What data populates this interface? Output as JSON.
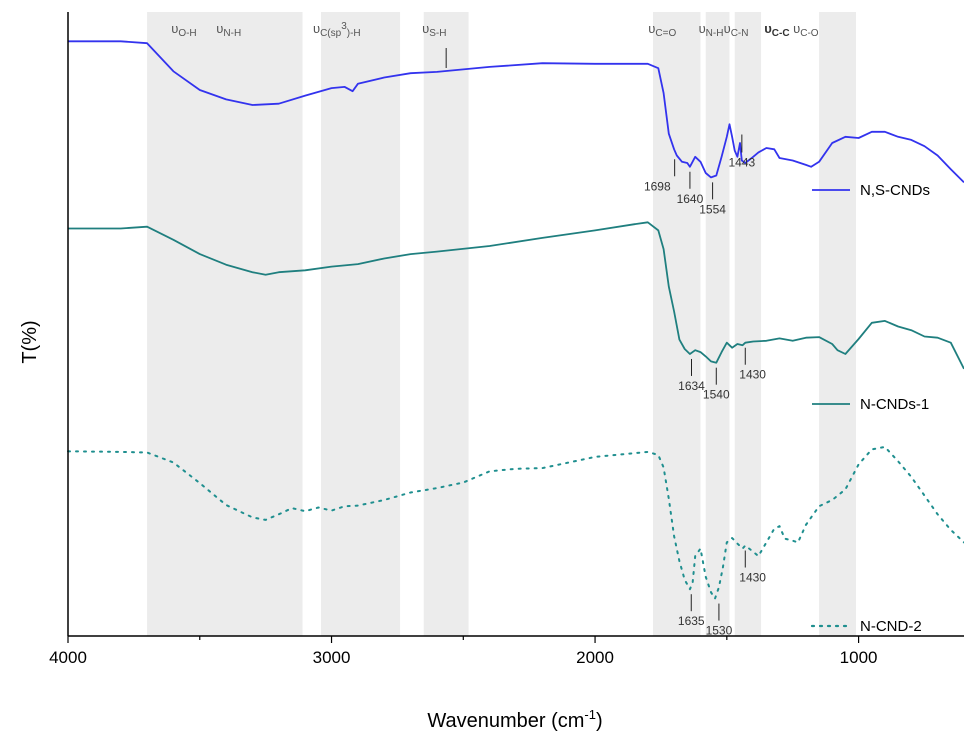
{
  "chart_data": {
    "type": "line",
    "title": "",
    "xlabel": "Wavenumber (cm",
    "xlabel_sup": "-1",
    "xlabel_close": ")",
    "ylabel": "T(%)",
    "xlim": [
      4000,
      600
    ],
    "x_reversed": true,
    "x_ticks": [
      4000,
      3000,
      2000,
      1000
    ],
    "x_tick_labels": [
      "4000",
      "3000",
      "2000",
      "1000"
    ],
    "y_ticks_shown": false,
    "ylim": [
      0,
      1
    ],
    "grid": false,
    "legend_position": "right",
    "bands": [
      {
        "label": "O-H",
        "from": 3700,
        "to": 3110
      },
      {
        "label": "C(sp3)-H",
        "from": 3040,
        "to": 2740
      },
      {
        "label": "S-H",
        "from": 2650,
        "to": 2480
      },
      {
        "label": "C=O",
        "from": 1780,
        "to": 1600
      },
      {
        "label": "N-H",
        "from": 1580,
        "to": 1490
      },
      {
        "label": "C-N",
        "from": 1470,
        "to": 1370
      },
      {
        "label": "C-C C-O",
        "from": 1150,
        "to": 1010
      }
    ],
    "band_labels": [
      {
        "sym": "υ",
        "sub": "O-H",
        "x": 3560
      },
      {
        "sym": "υ",
        "sub": "N-H",
        "x": 3390
      },
      {
        "sym": "υ",
        "sub": "C(sp",
        "sup": "3",
        "sub_tail": ")-H",
        "x": 2980
      },
      {
        "sym": "υ",
        "sub": "S-H",
        "x": 2610
      },
      {
        "sym": "υ",
        "sub": "C=O",
        "x": 1745
      },
      {
        "sym": "υ",
        "sub": "N-H",
        "x": 1560
      },
      {
        "sym": "υ",
        "sub": "C-N",
        "x": 1465
      },
      {
        "sym": "υ",
        "sub": "C-C",
        "x": 1310,
        "bold": true
      },
      {
        "sym": "υ",
        "sub": "C-O",
        "x": 1200
      }
    ],
    "series": [
      {
        "name": "N,S-CNDs",
        "color": "#3333ee",
        "style": "solid",
        "points": [
          [
            4000,
            0.953
          ],
          [
            3800,
            0.953
          ],
          [
            3700,
            0.95
          ],
          [
            3600,
            0.905
          ],
          [
            3500,
            0.875
          ],
          [
            3400,
            0.86
          ],
          [
            3300,
            0.851
          ],
          [
            3200,
            0.853
          ],
          [
            3100,
            0.866
          ],
          [
            3000,
            0.878
          ],
          [
            2950,
            0.88
          ],
          [
            2920,
            0.873
          ],
          [
            2900,
            0.885
          ],
          [
            2800,
            0.895
          ],
          [
            2700,
            0.902
          ],
          [
            2600,
            0.904
          ],
          [
            2400,
            0.912
          ],
          [
            2200,
            0.918
          ],
          [
            2000,
            0.917
          ],
          [
            1800,
            0.917
          ],
          [
            1760,
            0.91
          ],
          [
            1740,
            0.87
          ],
          [
            1720,
            0.805
          ],
          [
            1700,
            0.78
          ],
          [
            1690,
            0.77
          ],
          [
            1670,
            0.76
          ],
          [
            1650,
            0.758
          ],
          [
            1640,
            0.752
          ],
          [
            1620,
            0.768
          ],
          [
            1600,
            0.76
          ],
          [
            1580,
            0.742
          ],
          [
            1560,
            0.735
          ],
          [
            1540,
            0.738
          ],
          [
            1520,
            0.768
          ],
          [
            1500,
            0.8
          ],
          [
            1490,
            0.82
          ],
          [
            1480,
            0.8
          ],
          [
            1470,
            0.778
          ],
          [
            1460,
            0.768
          ],
          [
            1450,
            0.79
          ],
          [
            1443,
            0.762
          ],
          [
            1430,
            0.758
          ],
          [
            1400,
            0.768
          ],
          [
            1380,
            0.775
          ],
          [
            1350,
            0.782
          ],
          [
            1320,
            0.78
          ],
          [
            1300,
            0.766
          ],
          [
            1250,
            0.762
          ],
          [
            1200,
            0.755
          ],
          [
            1180,
            0.752
          ],
          [
            1150,
            0.76
          ],
          [
            1100,
            0.79
          ],
          [
            1050,
            0.8
          ],
          [
            1000,
            0.798
          ],
          [
            950,
            0.808
          ],
          [
            900,
            0.808
          ],
          [
            850,
            0.8
          ],
          [
            800,
            0.795
          ],
          [
            750,
            0.785
          ],
          [
            700,
            0.77
          ],
          [
            650,
            0.748
          ],
          [
            600,
            0.727
          ]
        ]
      },
      {
        "name": "N-CNDs-1",
        "color": "#1f7f7f",
        "style": "solid",
        "points": [
          [
            4000,
            0.653
          ],
          [
            3800,
            0.653
          ],
          [
            3700,
            0.656
          ],
          [
            3600,
            0.635
          ],
          [
            3500,
            0.612
          ],
          [
            3400,
            0.595
          ],
          [
            3300,
            0.583
          ],
          [
            3250,
            0.579
          ],
          [
            3200,
            0.583
          ],
          [
            3100,
            0.586
          ],
          [
            3000,
            0.592
          ],
          [
            2900,
            0.596
          ],
          [
            2800,
            0.605
          ],
          [
            2700,
            0.612
          ],
          [
            2600,
            0.616
          ],
          [
            2400,
            0.625
          ],
          [
            2200,
            0.638
          ],
          [
            2000,
            0.65
          ],
          [
            1850,
            0.66
          ],
          [
            1800,
            0.663
          ],
          [
            1760,
            0.65
          ],
          [
            1740,
            0.62
          ],
          [
            1720,
            0.56
          ],
          [
            1700,
            0.52
          ],
          [
            1680,
            0.475
          ],
          [
            1660,
            0.46
          ],
          [
            1640,
            0.452
          ],
          [
            1620,
            0.458
          ],
          [
            1600,
            0.455
          ],
          [
            1580,
            0.448
          ],
          [
            1560,
            0.44
          ],
          [
            1540,
            0.438
          ],
          [
            1520,
            0.455
          ],
          [
            1500,
            0.47
          ],
          [
            1480,
            0.462
          ],
          [
            1460,
            0.468
          ],
          [
            1440,
            0.466
          ],
          [
            1430,
            0.47
          ],
          [
            1400,
            0.472
          ],
          [
            1350,
            0.473
          ],
          [
            1300,
            0.477
          ],
          [
            1250,
            0.473
          ],
          [
            1200,
            0.478
          ],
          [
            1150,
            0.479
          ],
          [
            1100,
            0.468
          ],
          [
            1080,
            0.458
          ],
          [
            1050,
            0.452
          ],
          [
            1000,
            0.476
          ],
          [
            950,
            0.502
          ],
          [
            900,
            0.505
          ],
          [
            850,
            0.496
          ],
          [
            800,
            0.49
          ],
          [
            750,
            0.48
          ],
          [
            700,
            0.478
          ],
          [
            650,
            0.47
          ],
          [
            600,
            0.428
          ]
        ]
      },
      {
        "name": "N-CND-2",
        "color": "#1f8f8f",
        "style": "dotted",
        "points": [
          [
            4000,
            0.296
          ],
          [
            3800,
            0.295
          ],
          [
            3700,
            0.294
          ],
          [
            3600,
            0.278
          ],
          [
            3500,
            0.245
          ],
          [
            3400,
            0.21
          ],
          [
            3300,
            0.19
          ],
          [
            3250,
            0.186
          ],
          [
            3200,
            0.195
          ],
          [
            3150,
            0.205
          ],
          [
            3100,
            0.2
          ],
          [
            3050,
            0.206
          ],
          [
            3000,
            0.201
          ],
          [
            2950,
            0.208
          ],
          [
            2900,
            0.209
          ],
          [
            2800,
            0.218
          ],
          [
            2700,
            0.23
          ],
          [
            2600,
            0.237
          ],
          [
            2500,
            0.246
          ],
          [
            2400,
            0.264
          ],
          [
            2300,
            0.268
          ],
          [
            2200,
            0.269
          ],
          [
            2000,
            0.287
          ],
          [
            1800,
            0.295
          ],
          [
            1760,
            0.29
          ],
          [
            1740,
            0.27
          ],
          [
            1720,
            0.22
          ],
          [
            1700,
            0.16
          ],
          [
            1680,
            0.12
          ],
          [
            1660,
            0.09
          ],
          [
            1640,
            0.075
          ],
          [
            1630,
            0.085
          ],
          [
            1620,
            0.128
          ],
          [
            1600,
            0.14
          ],
          [
            1580,
            0.095
          ],
          [
            1560,
            0.07
          ],
          [
            1545,
            0.06
          ],
          [
            1530,
            0.078
          ],
          [
            1515,
            0.11
          ],
          [
            1500,
            0.15
          ],
          [
            1480,
            0.157
          ],
          [
            1460,
            0.148
          ],
          [
            1440,
            0.14
          ],
          [
            1430,
            0.145
          ],
          [
            1400,
            0.135
          ],
          [
            1380,
            0.128
          ],
          [
            1350,
            0.15
          ],
          [
            1320,
            0.172
          ],
          [
            1300,
            0.176
          ],
          [
            1280,
            0.156
          ],
          [
            1260,
            0.154
          ],
          [
            1230,
            0.15
          ],
          [
            1200,
            0.178
          ],
          [
            1150,
            0.208
          ],
          [
            1100,
            0.218
          ],
          [
            1050,
            0.235
          ],
          [
            1000,
            0.275
          ],
          [
            950,
            0.299
          ],
          [
            900,
            0.303
          ],
          [
            850,
            0.28
          ],
          [
            800,
            0.255
          ],
          [
            750,
            0.225
          ],
          [
            700,
            0.195
          ],
          [
            650,
            0.17
          ],
          [
            600,
            0.15
          ]
        ]
      }
    ],
    "peak_markers": [
      {
        "series": "N,S-CNDs",
        "x": 1698,
        "y": 0.772,
        "label": "1698",
        "side": "below-left"
      },
      {
        "series": "N,S-CNDs",
        "x": 1640,
        "y": 0.752,
        "label": "1640",
        "side": "below"
      },
      {
        "series": "N,S-CNDs",
        "x": 1554,
        "y": 0.735,
        "label": "1554",
        "side": "below"
      },
      {
        "series": "N,S-CNDs",
        "x": 1443,
        "y": 0.762,
        "label": "1443",
        "side": "above-mark"
      },
      {
        "series": "N-CNDs-1",
        "x": 1634,
        "y": 0.452,
        "label": "1634",
        "side": "below"
      },
      {
        "series": "N-CNDs-1",
        "x": 1540,
        "y": 0.438,
        "label": "1540",
        "side": "below"
      },
      {
        "series": "N-CNDs-1",
        "x": 1430,
        "y": 0.47,
        "label": "1430",
        "side": "below-right"
      },
      {
        "series": "N-CND-2",
        "x": 1635,
        "y": 0.075,
        "label": "1635",
        "side": "below"
      },
      {
        "series": "N-CND-2",
        "x": 1530,
        "y": 0.06,
        "label": "1530",
        "side": "below"
      },
      {
        "series": "N-CND-2",
        "x": 1430,
        "y": 0.145,
        "label": "1430",
        "side": "below-right"
      }
    ],
    "annotations": [
      {
        "type": "tick-mark",
        "x": 2565,
        "note": "S-H marker"
      }
    ]
  }
}
